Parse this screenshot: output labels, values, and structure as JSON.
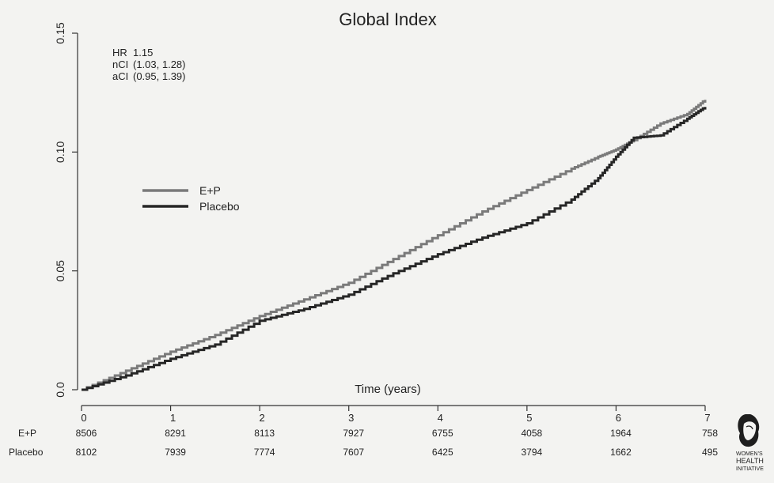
{
  "chart_data": {
    "type": "line",
    "title": "Global Index",
    "xlabel": "Time (years)",
    "ylabel": "",
    "xlim": [
      0,
      7
    ],
    "ylim": [
      0,
      0.15
    ],
    "x_ticks": [
      "0",
      "1",
      "2",
      "3",
      "4",
      "5",
      "6",
      "7"
    ],
    "y_ticks": [
      "0.0",
      "0.05",
      "0.10",
      "0.15"
    ],
    "grid": false,
    "legend_position": "upper-left",
    "annotation": [
      {
        "label": "HR",
        "value": "1.15"
      },
      {
        "label": "nCI",
        "value": "(1.03, 1.28)"
      },
      {
        "label": "aCI",
        "value": "(0.95, 1.39)"
      }
    ],
    "series": [
      {
        "name": "E+P",
        "color": "#7a7a7a",
        "x": [
          0,
          0.5,
          1,
          1.5,
          2,
          2.5,
          3,
          3.5,
          4,
          4.5,
          5,
          5.5,
          5.8,
          6,
          6.2,
          6.5,
          6.8,
          7
        ],
        "y": [
          0,
          0.008,
          0.016,
          0.023,
          0.031,
          0.038,
          0.045,
          0.055,
          0.065,
          0.075,
          0.084,
          0.093,
          0.098,
          0.101,
          0.105,
          0.112,
          0.116,
          0.122
        ]
      },
      {
        "name": "Placebo",
        "color": "#262626",
        "x": [
          0,
          0.5,
          1,
          1.5,
          2,
          2.5,
          3,
          3.5,
          4,
          4.5,
          5,
          5.5,
          5.8,
          6,
          6.2,
          6.5,
          6.8,
          7
        ],
        "y": [
          0,
          0.006,
          0.013,
          0.019,
          0.029,
          0.034,
          0.04,
          0.049,
          0.057,
          0.064,
          0.07,
          0.08,
          0.089,
          0.098,
          0.106,
          0.107,
          0.114,
          0.119
        ]
      }
    ],
    "risk_table": {
      "rows": [
        {
          "label": "E+P",
          "values": [
            "8506",
            "8291",
            "8113",
            "7927",
            "6755",
            "4058",
            "1964",
            "758"
          ]
        },
        {
          "label": "Placebo",
          "values": [
            "8102",
            "7939",
            "7774",
            "7607",
            "6425",
            "3794",
            "1662",
            "495"
          ]
        }
      ]
    }
  },
  "logo": {
    "lines": [
      "WOMEN'S",
      "HEALTH",
      "INITIATIVE"
    ]
  }
}
